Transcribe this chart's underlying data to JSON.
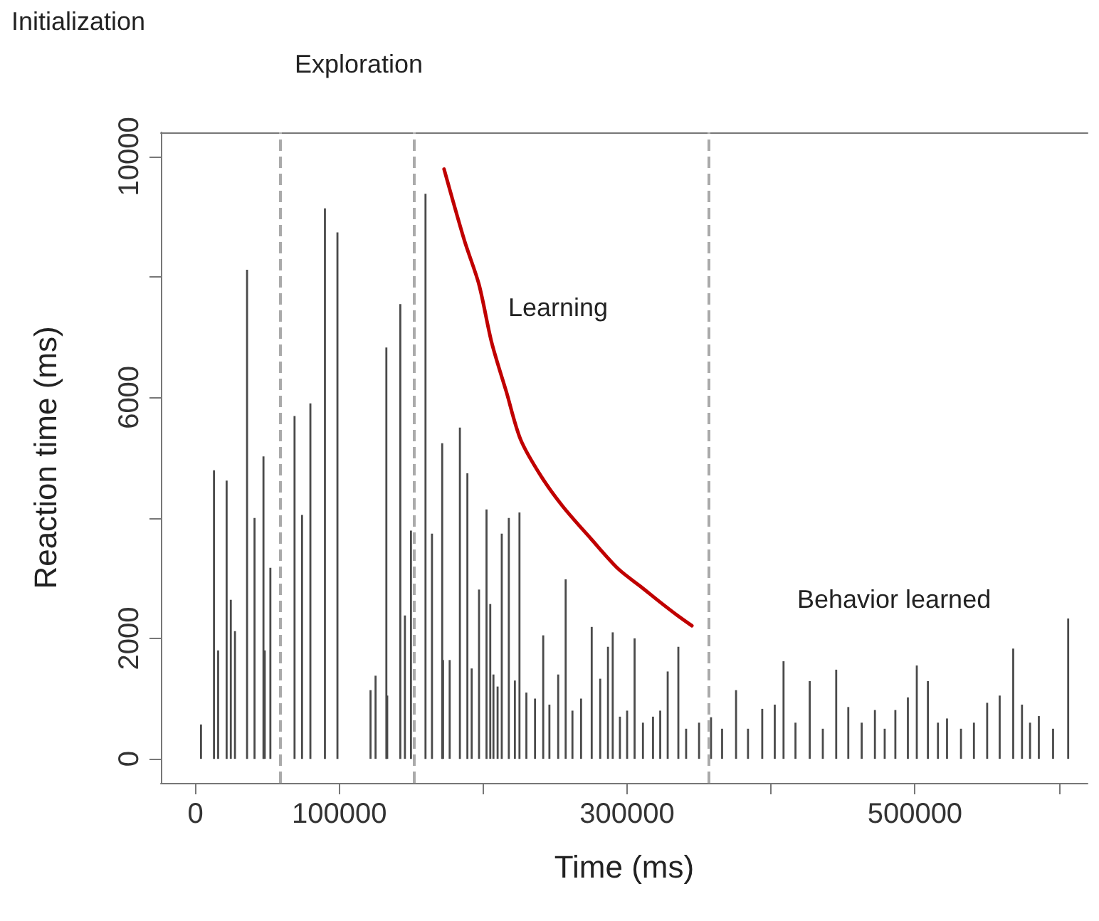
{
  "chart_data": {
    "type": "bar",
    "xlabel": "Time (ms)",
    "ylabel": "Reaction time (ms)",
    "xlim": [
      -24000,
      620000
    ],
    "ylim": [
      -400,
      10400
    ],
    "xticks": [
      0,
      100000,
      {
        "value": 200000,
        "label": null
      },
      300000,
      {
        "value": 400000,
        "label": null
      },
      500000,
      {
        "value": 600000,
        "label": null
      }
    ],
    "yticks": [
      0,
      2000,
      {
        "value": 4000,
        "label": null
      },
      6000,
      {
        "value": 8000,
        "label": null
      },
      10000
    ],
    "series": [
      {
        "color": "#4a4a4a",
        "x": [
          3900,
          12900,
          15800,
          21700,
          24600,
          27500,
          35900,
          41100,
          47300,
          48200,
          52100,
          68900,
          74100,
          79900,
          90000,
          98700,
          121700,
          125200,
          132700,
          133300,
          142400,
          145600,
          149800,
          159900,
          164400,
          171500,
          172100,
          176700,
          183800,
          189000,
          192000,
          197100,
          202300,
          204900,
          207100,
          210000,
          212900,
          217800,
          222000,
          225200,
          230000,
          236000,
          241700,
          246000,
          252100,
          257300,
          262000,
          268000,
          275400,
          281300,
          286700,
          290000,
          295000,
          300000,
          305200,
          311000,
          318000,
          323000,
          328200,
          335600,
          341000,
          350000,
          358300,
          366000,
          375700,
          384000,
          393900,
          402600,
          408700,
          417000,
          426900,
          436000,
          445300,
          453700,
          463000,
          472200,
          479000,
          486400,
          495100,
          501300,
          509000,
          516000,
          522300,
          532000,
          541000,
          550200,
          558900,
          568300,
          574400,
          580000,
          586100,
          596000,
          606500
        ],
        "values": [
          570,
          4790,
          1800,
          4620,
          2640,
          2120,
          8120,
          4000,
          5020,
          1800,
          3170,
          5690,
          4050,
          5900,
          9140,
          8740,
          1140,
          1380,
          6830,
          1050,
          7550,
          2380,
          3790,
          9380,
          3740,
          5240,
          1640,
          1640,
          5500,
          4740,
          1500,
          2810,
          4140,
          2570,
          1400,
          1200,
          3740,
          4000,
          1300,
          4090,
          1100,
          1000,
          2050,
          900,
          1400,
          2980,
          800,
          1000,
          2190,
          1330,
          1860,
          2100,
          700,
          800,
          2000,
          600,
          700,
          800,
          1450,
          1860,
          500,
          600,
          690,
          500,
          1140,
          500,
          830,
          900,
          1620,
          600,
          1290,
          500,
          1480,
          860,
          600,
          810,
          500,
          810,
          1020,
          1550,
          1290,
          600,
          670,
          500,
          600,
          930,
          1050,
          1830,
          900,
          600,
          710,
          500,
          2330
        ]
      },
      {
        "type": "line",
        "color": "#c00000",
        "line_style": "solid",
        "marker": "none",
        "x": [
          172800,
          187000,
          197000,
          206000,
          216000,
          226000,
          240000,
          255000,
          275000,
          294000,
          310000,
          323000,
          335000,
          345000
        ],
        "values": [
          9790,
          8600,
          7880,
          6900,
          6100,
          5300,
          4700,
          4200,
          3650,
          3150,
          2850,
          2600,
          2380,
          2210
        ]
      }
    ],
    "ref_lines": [
      {
        "axis": "x",
        "value": 59000,
        "color": "#aaaaaa",
        "line_style": "dashed"
      },
      {
        "axis": "x",
        "value": 152000,
        "color": "#aaaaaa",
        "line_style": "dashed"
      },
      {
        "axis": "x",
        "value": 357000,
        "color": "#aaaaaa",
        "line_style": "dashed"
      }
    ],
    "annotations": [
      "Initialization",
      "Exploration",
      "Learning",
      "Behavior learned"
    ]
  }
}
